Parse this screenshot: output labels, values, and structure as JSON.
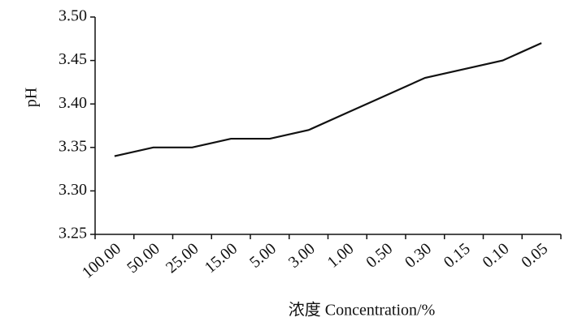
{
  "chart_data": {
    "type": "line",
    "x_label": "浓度  Concentration/%",
    "y_label": "pH",
    "categories": [
      "100.00",
      "50.00",
      "25.00",
      "15.00",
      "5.00",
      "3.00",
      "1.00",
      "0.50",
      "0.30",
      "0.15",
      "0.10",
      "0.05"
    ],
    "values": [
      3.34,
      3.35,
      3.35,
      3.36,
      3.36,
      3.37,
      3.39,
      3.41,
      3.43,
      3.44,
      3.45,
      3.47
    ],
    "color": "#111111",
    "ylim": [
      3.25,
      3.5
    ],
    "yticks": [
      {
        "value": 3.25,
        "label": "3.25"
      },
      {
        "value": 3.3,
        "label": "3.30"
      },
      {
        "value": 3.35,
        "label": "3.35"
      },
      {
        "value": 3.4,
        "label": "3.40"
      },
      {
        "value": 3.45,
        "label": "3.45"
      },
      {
        "value": 3.5,
        "label": "3.50"
      }
    ],
    "grid": false
  }
}
